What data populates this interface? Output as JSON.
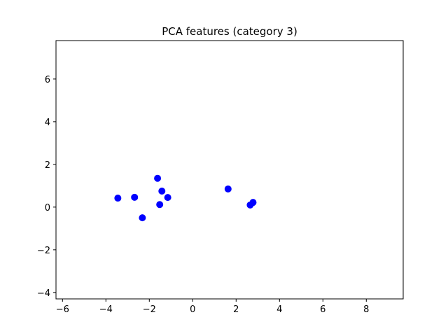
{
  "chart_data": {
    "type": "scatter",
    "title": "PCA features (category 3)",
    "xlabel": "",
    "ylabel": "",
    "xlim": [
      -6.3,
      9.7
    ],
    "ylim": [
      -4.3,
      7.8
    ],
    "xticks": [
      -6,
      -4,
      -2,
      0,
      2,
      4,
      6,
      8
    ],
    "yticks": [
      -4,
      -2,
      0,
      2,
      4,
      6
    ],
    "grid": false,
    "series": [
      {
        "color": "#0000ff",
        "marker": "circle",
        "points": [
          {
            "x": -3.45,
            "y": 0.42
          },
          {
            "x": -2.68,
            "y": 0.46
          },
          {
            "x": -2.32,
            "y": -0.5
          },
          {
            "x": -1.62,
            "y": 1.35
          },
          {
            "x": -1.52,
            "y": 0.12
          },
          {
            "x": -1.42,
            "y": 0.75
          },
          {
            "x": -1.15,
            "y": 0.45
          },
          {
            "x": 1.63,
            "y": 0.85
          },
          {
            "x": 2.65,
            "y": 0.1
          },
          {
            "x": 2.78,
            "y": 0.22
          }
        ]
      }
    ]
  }
}
